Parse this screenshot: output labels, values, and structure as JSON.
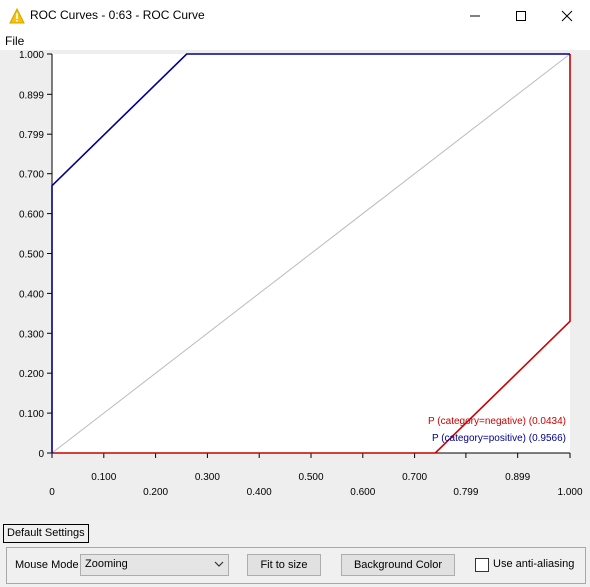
{
  "window": {
    "title": "ROC Curves - 0:63 - ROC Curve"
  },
  "menu": {
    "file": "File"
  },
  "chart_data": {
    "type": "line",
    "xlabel": "",
    "ylabel": "",
    "xlim": [
      0,
      1
    ],
    "ylim": [
      0,
      1
    ],
    "x_ticks": [
      {
        "v": 0.0,
        "label": "0",
        "row": 1
      },
      {
        "v": 0.1,
        "label": "0.100",
        "row": 0
      },
      {
        "v": 0.2,
        "label": "0.200",
        "row": 1
      },
      {
        "v": 0.3,
        "label": "0.300",
        "row": 0
      },
      {
        "v": 0.4,
        "label": "0.400",
        "row": 1
      },
      {
        "v": 0.5,
        "label": "0.500",
        "row": 0
      },
      {
        "v": 0.6,
        "label": "0.600",
        "row": 1
      },
      {
        "v": 0.7,
        "label": "0.700",
        "row": 0
      },
      {
        "v": 0.799,
        "label": "0.799",
        "row": 1
      },
      {
        "v": 0.899,
        "label": "0.899",
        "row": 0
      },
      {
        "v": 1.0,
        "label": "1.000",
        "row": 1
      }
    ],
    "y_ticks": [
      {
        "v": 0.0,
        "label": "0"
      },
      {
        "v": 0.1,
        "label": "0.100"
      },
      {
        "v": 0.2,
        "label": "0.200"
      },
      {
        "v": 0.3,
        "label": "0.300"
      },
      {
        "v": 0.4,
        "label": "0.400"
      },
      {
        "v": 0.5,
        "label": "0.500"
      },
      {
        "v": 0.6,
        "label": "0.600"
      },
      {
        "v": 0.7,
        "label": "0.700"
      },
      {
        "v": 0.799,
        "label": "0.799"
      },
      {
        "v": 0.899,
        "label": "0.899"
      },
      {
        "v": 1.0,
        "label": "1.000"
      }
    ],
    "series": [
      {
        "name": "P (category=negative)",
        "auc": "(0.0434)",
        "color": "#cc0000",
        "x": [
          0.0,
          0.74,
          1.0,
          1.0
        ],
        "y": [
          0.0,
          0.0,
          0.33,
          1.0
        ]
      },
      {
        "name": "P (category=positive)",
        "auc": "(0.9566)",
        "color": "#00008b",
        "x": [
          0.0,
          0.0,
          0.26,
          1.0
        ],
        "y": [
          0.0,
          0.67,
          1.0,
          1.0
        ]
      },
      {
        "name": "",
        "color": "#bbbbbb",
        "x": [
          0.0,
          1.0
        ],
        "y": [
          0.0,
          1.0
        ]
      }
    ]
  },
  "tabs": {
    "default": "Default Settings"
  },
  "controls": {
    "mouse_mode_label": "Mouse Mode",
    "mouse_mode_value": "Zooming",
    "fit_button": "Fit to size",
    "bg_button": "Background Color",
    "antialias_label": "Use anti-aliasing"
  }
}
